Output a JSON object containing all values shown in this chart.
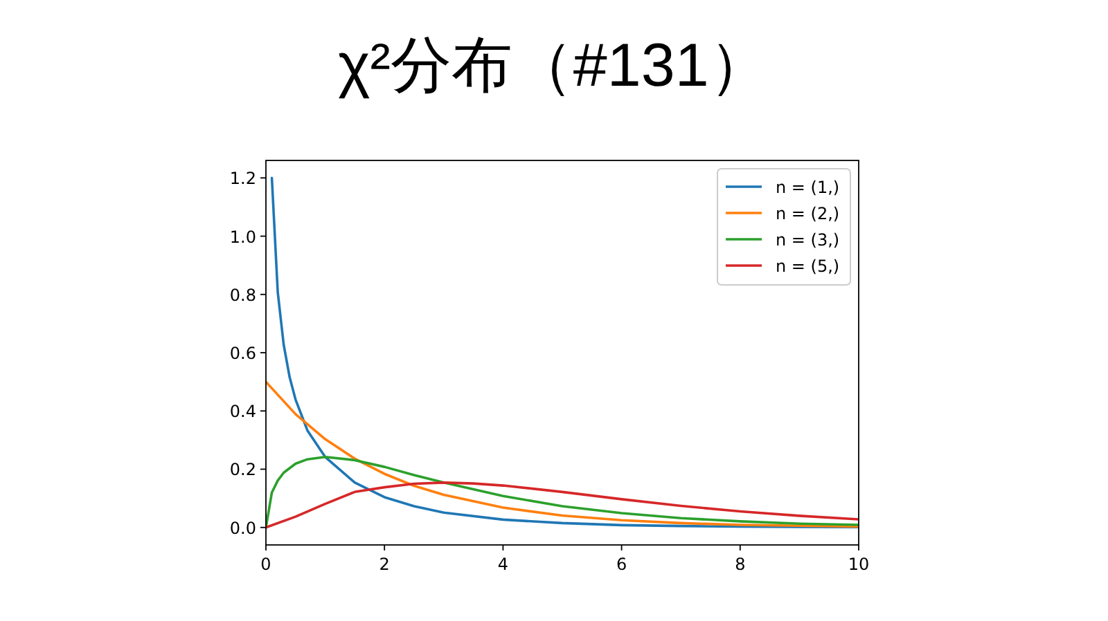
{
  "chart_data": {
    "type": "line",
    "title": "χ²分布（#131）",
    "xlim": [
      0,
      10
    ],
    "ylim": [
      -0.06,
      1.26
    ],
    "xticks": [
      0,
      2,
      4,
      6,
      8,
      10
    ],
    "yticks": [
      {
        "value": 0,
        "label": "0.0"
      },
      0.2,
      0.4,
      0.6,
      0.8,
      {
        "value": 1,
        "label": "1.0"
      },
      1.2
    ],
    "grid": false,
    "legend": "top right",
    "marker": "none",
    "line_style": "solid",
    "series": [
      {
        "name": "n = (1,)",
        "color": "#1f77b4",
        "x": [
          0.1,
          0.2,
          0.3,
          0.4,
          0.5,
          0.7,
          1,
          1.5,
          2,
          2.5,
          3,
          4,
          5,
          6,
          7,
          8,
          9,
          10
        ],
        "values": [
          1.2,
          0.807,
          0.627,
          0.516,
          0.439,
          0.333,
          0.242,
          0.154,
          0.104,
          0.073,
          0.051,
          0.027,
          0.015,
          0.008,
          0.005,
          0.003,
          0.002,
          0.001
        ]
      },
      {
        "name": "n = (2,)",
        "color": "#ff7f0e",
        "x": [
          0,
          0.5,
          1,
          1.5,
          2,
          2.5,
          3,
          4,
          5,
          6,
          7,
          8,
          9,
          10
        ],
        "values": [
          0.5,
          0.389,
          0.303,
          0.236,
          0.184,
          0.143,
          0.112,
          0.068,
          0.041,
          0.025,
          0.015,
          0.009,
          0.006,
          0.003
        ]
      },
      {
        "name": "n = (3,)",
        "color": "#2ca02c",
        "x": [
          0,
          0.1,
          0.2,
          0.3,
          0.5,
          0.7,
          1,
          1.5,
          2,
          2.5,
          3,
          4,
          5,
          6,
          7,
          8,
          9,
          10
        ],
        "values": [
          0,
          0.12,
          0.161,
          0.188,
          0.219,
          0.234,
          0.242,
          0.231,
          0.208,
          0.18,
          0.154,
          0.108,
          0.073,
          0.049,
          0.032,
          0.021,
          0.013,
          0.009
        ]
      },
      {
        "name": "n = (5,)",
        "color": "#d62728",
        "x": [
          0,
          0.5,
          1,
          1.5,
          2,
          2.5,
          3,
          3.5,
          4,
          5,
          6,
          7,
          8,
          9,
          10
        ],
        "values": [
          0,
          0.037,
          0.081,
          0.122,
          0.138,
          0.15,
          0.154,
          0.151,
          0.144,
          0.122,
          0.097,
          0.074,
          0.055,
          0.04,
          0.028
        ]
      }
    ]
  }
}
